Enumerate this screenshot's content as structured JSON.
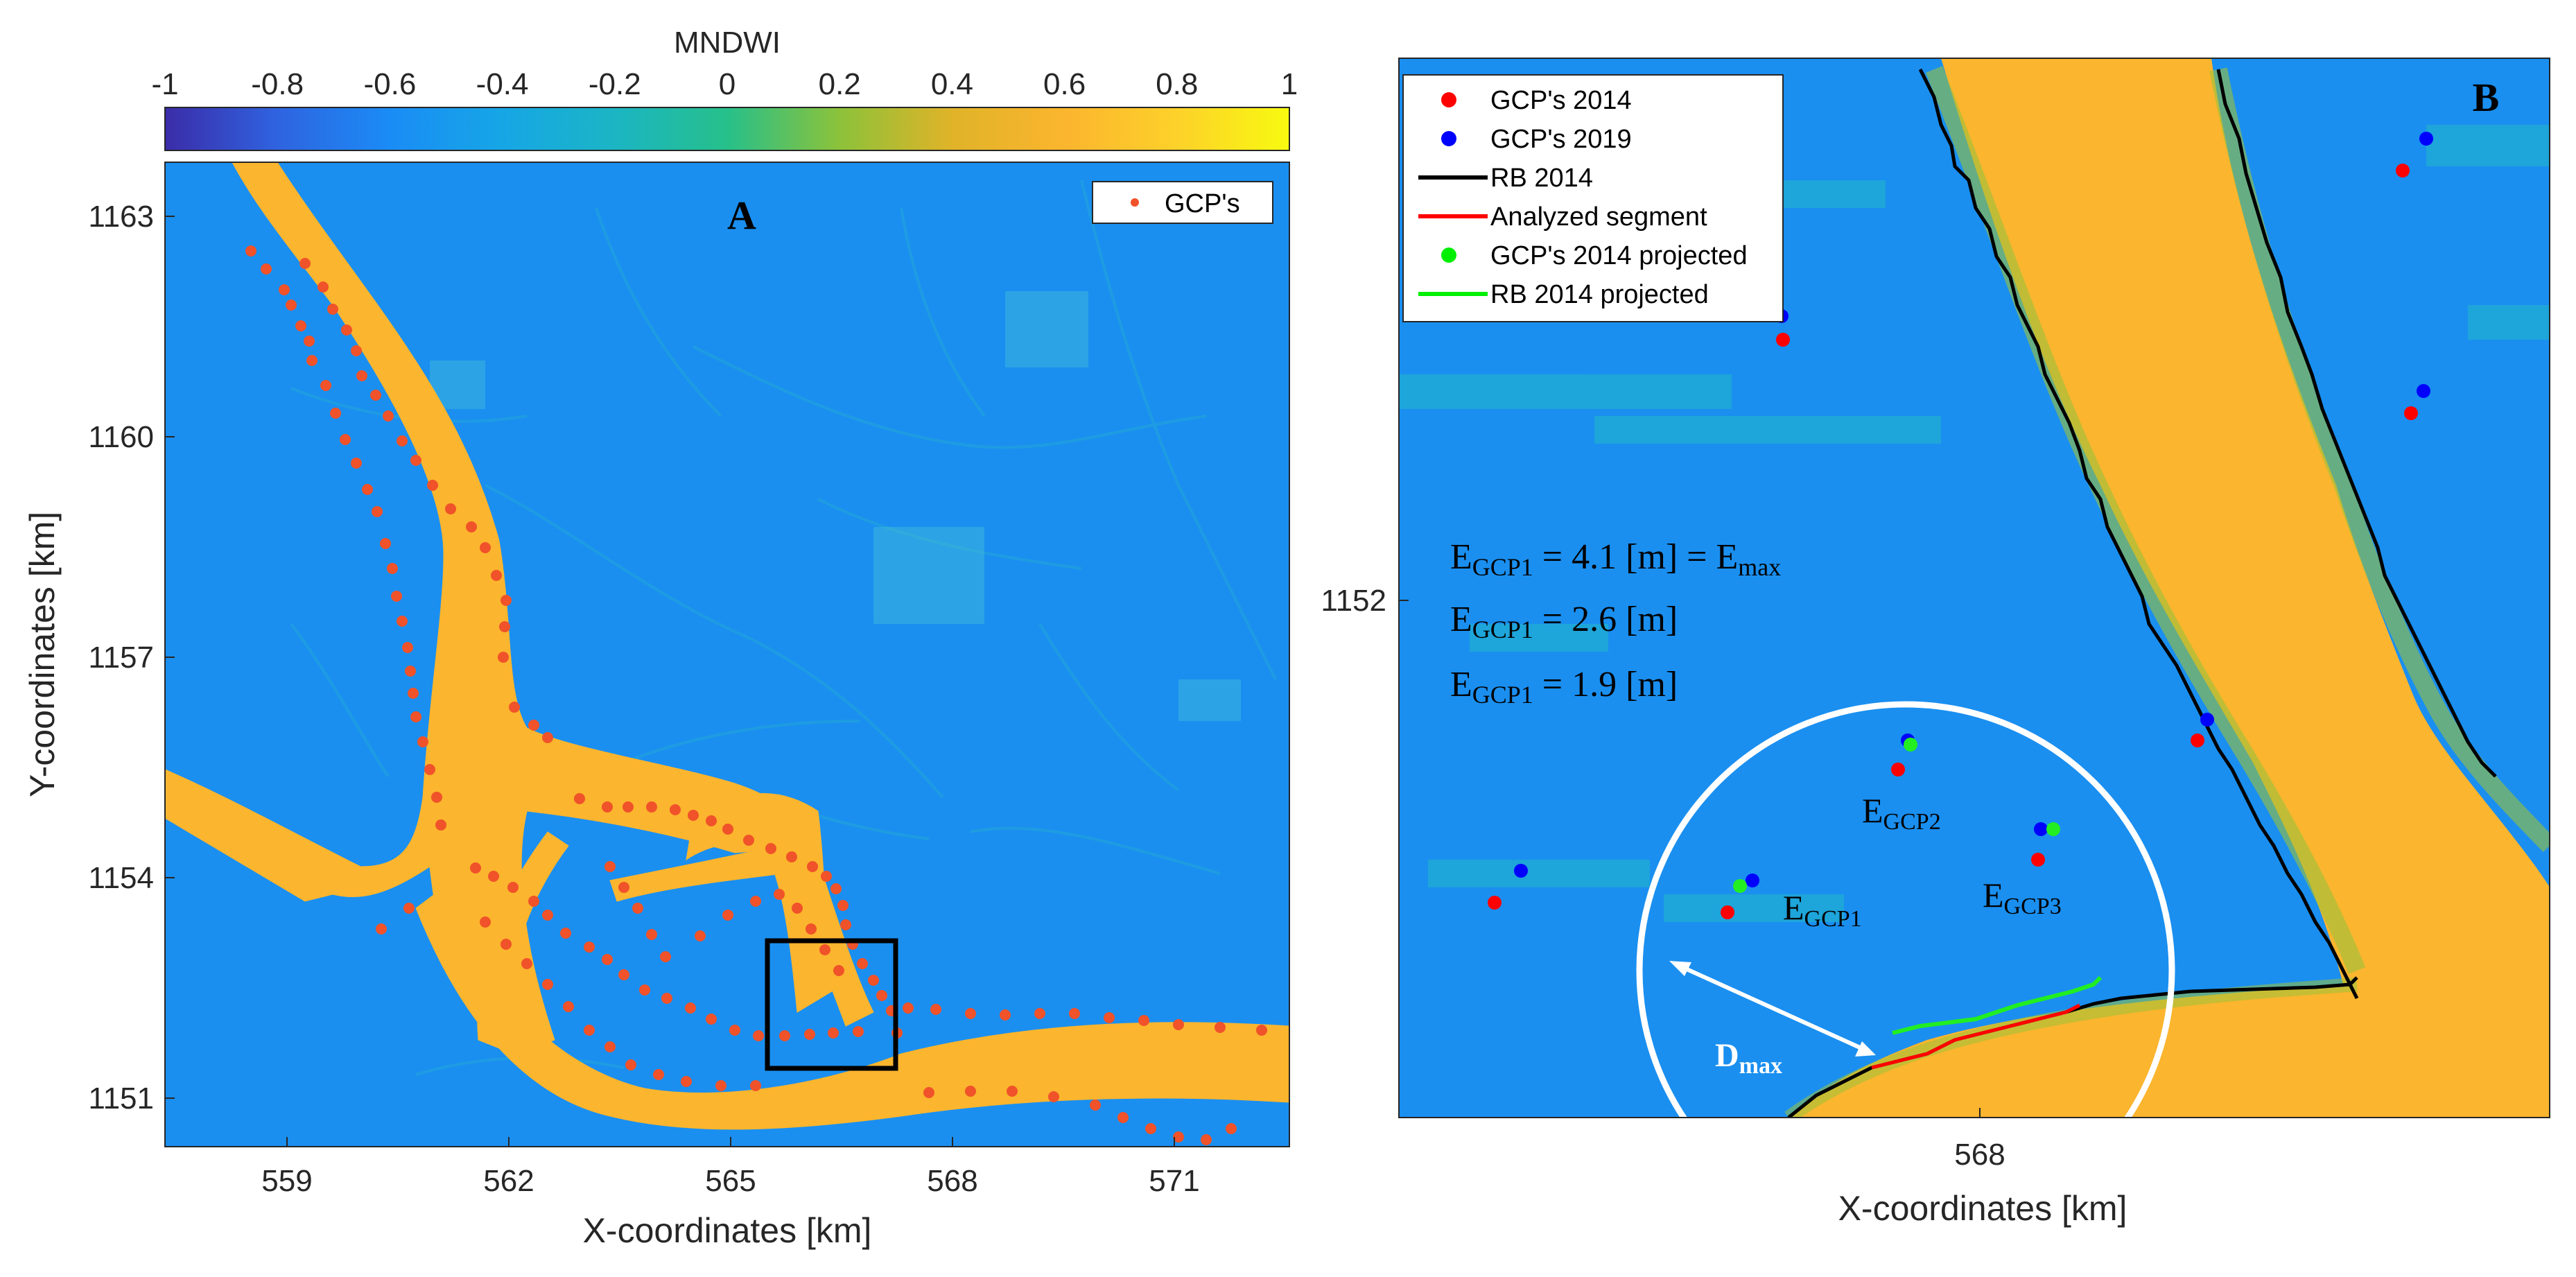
{
  "colorbar": {
    "title": "MNDWI",
    "ticks": [
      "-1",
      "-0.8",
      "-0.6",
      "-0.4",
      "-0.2",
      "0",
      "0.2",
      "0.4",
      "0.6",
      "0.8",
      "1"
    ],
    "range": [
      -1,
      1
    ],
    "colors": [
      "#3b2ca8",
      "#2f63e0",
      "#1a8cf5",
      "#16a6e6",
      "#1bb5c4",
      "#27c08a",
      "#8cc23a",
      "#e0b328",
      "#fbb52e",
      "#fdd12a",
      "#f8fa10"
    ]
  },
  "panel_a": {
    "label": "A",
    "x_ticks": [
      "559",
      "562",
      "565",
      "568",
      "571"
    ],
    "y_ticks": [
      "1163",
      "1160",
      "1157",
      "1154",
      "1151"
    ],
    "xlabel": "X-coordinates [km]",
    "ylabel": "Y-coordinates [km]",
    "legend": [
      "GCP's"
    ],
    "background_color": "#1a8ff0",
    "water_color": "#fbb52e",
    "gcp_color": "#f0522a"
  },
  "panel_b": {
    "label": "B",
    "x_ticks": [
      "568"
    ],
    "y_ticks": [
      "1152"
    ],
    "xlabel": "X-coordinates [km]",
    "legend": [
      {
        "label": "GCP's 2014",
        "color": "#ff0000",
        "kind": "dot"
      },
      {
        "label": "GCP's 2019",
        "color": "#0000ff",
        "kind": "dot"
      },
      {
        "label": "RB 2014",
        "color": "#000000",
        "kind": "line"
      },
      {
        "label": "Analyzed segment",
        "color": "#ff0000",
        "kind": "line"
      },
      {
        "label": "GCP's 2014 projected",
        "color": "#00ee00",
        "kind": "dot"
      },
      {
        "label": "RB 2014 projected",
        "color": "#00ee00",
        "kind": "line"
      }
    ],
    "errors": [
      {
        "lhs": "E",
        "sub": "GCP1",
        "text": " = 4.1 [m] = E",
        "sub2": "max"
      },
      {
        "lhs": "E",
        "sub": "GCP1",
        "text": " = 2.6 [m]",
        "sub2": ""
      },
      {
        "lhs": "E",
        "sub": "GCP1",
        "text": " = 1.9 [m]",
        "sub2": ""
      }
    ],
    "point_labels": [
      {
        "main": "E",
        "sub": "GCP1"
      },
      {
        "main": "E",
        "sub": "GCP2"
      },
      {
        "main": "E",
        "sub": "GCP3"
      }
    ],
    "dmax": {
      "main": "D",
      "sub": "max"
    }
  }
}
